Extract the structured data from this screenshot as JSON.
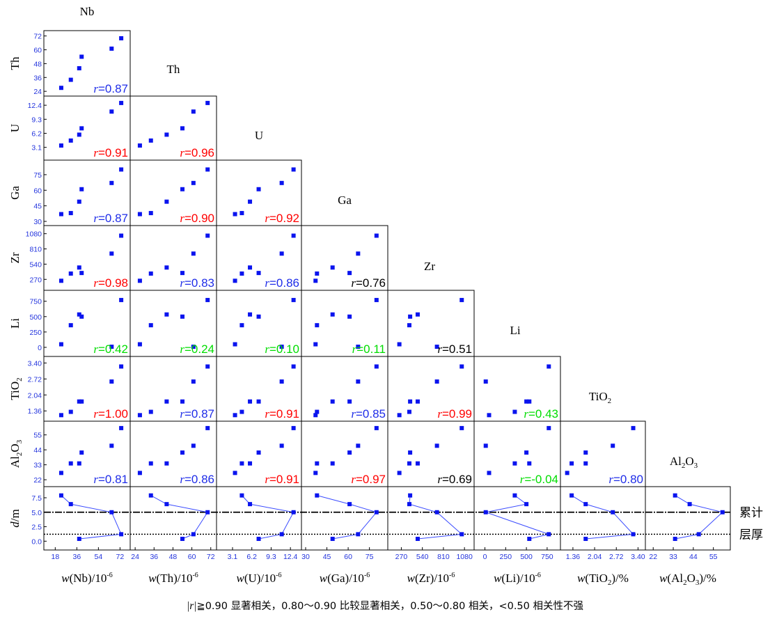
{
  "chart_data": {
    "type": "scatter",
    "title": "",
    "variables": [
      "Nb",
      "Th",
      "U",
      "Ga",
      "Zr",
      "Li",
      "TiO2",
      "Al2O3"
    ],
    "diagonal_labels": [
      "Nb",
      "Th",
      "U",
      "Ga",
      "Zr",
      "Li",
      "TiO",
      "Al"
    ],
    "diagonal_subscripts": [
      "",
      "",
      "",
      "",
      "",
      "",
      "2",
      "2"
    ],
    "diagonal_tails": [
      "",
      "",
      "",
      "",
      "",
      "",
      "",
      "O"
    ],
    "diagonal_tail_subscripts": [
      "",
      "",
      "",
      "",
      "",
      "",
      "",
      "3"
    ],
    "y_axis_labels": [
      "Th",
      "U",
      "Ga",
      "Zr",
      "Li",
      "TiO",
      "Al",
      "d/m"
    ],
    "x_axis_labels": [
      "w(Nb)/10",
      "w(Th)/10",
      "w(U)/10",
      "w(Ga)/10",
      "w(Zr)/10",
      "w(Li)/10",
      "w(TiO",
      "w(Al"
    ],
    "x_axis_label_parts": {
      "exponent": "-6",
      "tio2_close": ")/%",
      "al2o3_close": "O",
      "al2o3_tail": ")/%",
      "sub_2": "2",
      "sub_3": "3"
    },
    "ticks": {
      "Nb": [
        "18",
        "36",
        "54",
        "72"
      ],
      "Th": [
        "24",
        "36",
        "48",
        "60",
        "72"
      ],
      "U": [
        "3.1",
        "6.2",
        "9.3",
        "12.4"
      ],
      "Ga": [
        "30",
        "45",
        "60",
        "75"
      ],
      "Zr": [
        "270",
        "540",
        "810",
        "1080"
      ],
      "Li": [
        "0",
        "250",
        "500",
        "750"
      ],
      "TiO2": [
        "1.36",
        "2.04",
        "2.72",
        "3.40"
      ],
      "Al2O3": [
        "22",
        "33",
        "44",
        "55"
      ],
      "d": [
        "0.0",
        "2.5",
        "5.0",
        "7.5"
      ]
    },
    "axis_limits": {
      "Nb": [
        12,
        77
      ],
      "Th": [
        23.5,
        73
      ],
      "U": [
        1.2,
        13.5
      ],
      "Ga": [
        30,
        85
      ],
      "Zr": [
        150,
        1150
      ],
      "Li": [
        -80,
        860
      ],
      "TiO2": [
        1.1,
        3.5
      ],
      "Al2O3": [
        20,
        62
      ],
      "d": [
        -0.8,
        8.7
      ]
    },
    "samples": {
      "Nb": [
        23,
        31,
        38,
        40,
        65,
        73
      ],
      "Th": [
        27,
        34,
        44,
        54,
        61,
        70
      ],
      "U": [
        3.5,
        4.6,
        5.9,
        7.3,
        11.0,
        12.9
      ],
      "Ga": [
        37,
        38,
        49,
        61,
        67,
        80
      ],
      "Zr": [
        245,
        373,
        480,
        383,
        727,
        1045
      ],
      "Li": [
        50,
        360,
        535,
        500,
        10,
        770
      ],
      "TiO2": [
        1.18,
        1.32,
        1.76,
        1.76,
        2.61,
        3.25
      ],
      "Al2O3": [
        27,
        34,
        34,
        42,
        47,
        60
      ]
    },
    "depth_samples": [
      {
        "d": 0.4,
        "values": {
          "Nb": 38,
          "Th": 54,
          "U": 7.3,
          "Ga": 49,
          "Zr": 480,
          "Li": 535,
          "TiO2": 1.76,
          "Al2O3": 34
        }
      },
      {
        "d": 1.2,
        "values": {
          "Nb": 73,
          "Th": 61,
          "U": 11.0,
          "Ga": 67,
          "Zr": 1045,
          "Li": 770,
          "TiO2": 3.25,
          "Al2O3": 47
        }
      },
      {
        "d": 5.0,
        "values": {
          "Nb": 65,
          "Th": 70,
          "U": 12.9,
          "Ga": 80,
          "Zr": 727,
          "Li": 10,
          "TiO2": 2.61,
          "Al2O3": 60
        }
      },
      {
        "d": 6.4,
        "values": {
          "Nb": 31,
          "Th": 44,
          "U": 5.9,
          "Ga": 61,
          "Zr": 373,
          "Li": 500,
          "TiO2": 1.76,
          "Al2O3": 42
        }
      },
      {
        "d": 7.9,
        "values": {
          "Nb": 23,
          "Th": 34,
          "U": 4.6,
          "Ga": 38,
          "Zr": 383,
          "Li": 360,
          "TiO2": 1.32,
          "Al2O3": 34
        }
      }
    ],
    "correlations": [
      {
        "row": "Th",
        "col": "Nb",
        "r": "=0.87",
        "color": "#1f2de8"
      },
      {
        "row": "U",
        "col": "Nb",
        "r": "=0.91",
        "color": "#ff0000"
      },
      {
        "row": "U",
        "col": "Th",
        "r": "=0.96",
        "color": "#ff0000"
      },
      {
        "row": "Ga",
        "col": "Nb",
        "r": "=0.87",
        "color": "#1f2de8"
      },
      {
        "row": "Ga",
        "col": "Th",
        "r": "=0.90",
        "color": "#ff0000"
      },
      {
        "row": "Ga",
        "col": "U",
        "r": "=0.92",
        "color": "#ff0000"
      },
      {
        "row": "Zr",
        "col": "Nb",
        "r": "=0.98",
        "color": "#ff0000"
      },
      {
        "row": "Zr",
        "col": "Th",
        "r": "=0.83",
        "color": "#1f2de8"
      },
      {
        "row": "Zr",
        "col": "U",
        "r": "=0.86",
        "color": "#1f2de8"
      },
      {
        "row": "Zr",
        "col": "Ga",
        "r": "=0.76",
        "color": "#000000"
      },
      {
        "row": "Li",
        "col": "Nb",
        "r": "=0.42",
        "color": "#00dd00"
      },
      {
        "row": "Li",
        "col": "Th",
        "r": "=0.24",
        "color": "#00dd00"
      },
      {
        "row": "Li",
        "col": "U",
        "r": "=0.10",
        "color": "#00dd00"
      },
      {
        "row": "Li",
        "col": "Ga",
        "r": "=0.11",
        "color": "#00dd00"
      },
      {
        "row": "Li",
        "col": "Zr",
        "r": "=0.51",
        "color": "#000000"
      },
      {
        "row": "TiO2",
        "col": "Nb",
        "r": "=1.00",
        "color": "#ff0000"
      },
      {
        "row": "TiO2",
        "col": "Th",
        "r": "=0.87",
        "color": "#1f2de8"
      },
      {
        "row": "TiO2",
        "col": "U",
        "r": "=0.91",
        "color": "#ff0000"
      },
      {
        "row": "TiO2",
        "col": "Ga",
        "r": "=0.85",
        "color": "#1f2de8"
      },
      {
        "row": "TiO2",
        "col": "Zr",
        "r": "=0.99",
        "color": "#ff0000"
      },
      {
        "row": "TiO2",
        "col": "Li",
        "r": "=0.43",
        "color": "#00dd00"
      },
      {
        "row": "Al2O3",
        "col": "Nb",
        "r": "=0.81",
        "color": "#1f2de8"
      },
      {
        "row": "Al2O3",
        "col": "Th",
        "r": "=0.86",
        "color": "#1f2de8"
      },
      {
        "row": "Al2O3",
        "col": "U",
        "r": "=0.91",
        "color": "#ff0000"
      },
      {
        "row": "Al2O3",
        "col": "Ga",
        "r": "=0.97",
        "color": "#ff0000"
      },
      {
        "row": "Al2O3",
        "col": "Zr",
        "r": "=0.69",
        "color": "#000000"
      },
      {
        "row": "Al2O3",
        "col": "Li",
        "r": "=-0.04",
        "color": "#00dd00"
      },
      {
        "row": "Al2O3",
        "col": "TiO2",
        "r": "=0.80",
        "color": "#1f2de8"
      }
    ],
    "r_symbol": "r",
    "reference_lines": [
      {
        "d": 5.0,
        "style": "solid",
        "label": "累计"
      },
      {
        "d": 1.2,
        "style": "dotted",
        "label": "层厚"
      }
    ],
    "footer": {
      "r_abs_symbol": "|r|",
      "text": "≧0.90  显著相关，0.80～0.90  比较显著相关，0.50～0.80 相关，<0.50 相关性不强"
    },
    "colors": {
      "points": "#0a14ee",
      "tick": "#2233dd",
      "line": "#3a4bff"
    },
    "grid": false,
    "legend": "none"
  }
}
